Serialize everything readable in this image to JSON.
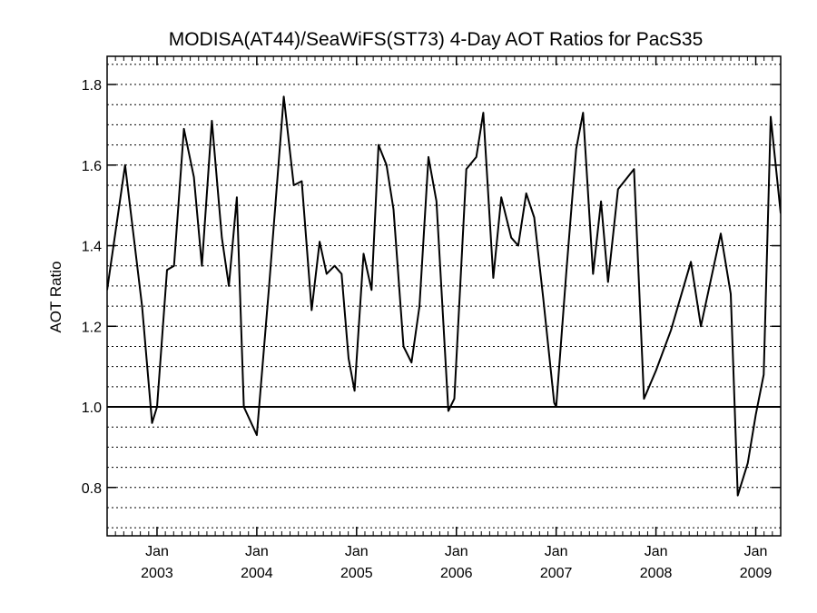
{
  "chart_data": {
    "type": "line",
    "title": "MODISA(AT44)/SeaWiFS(ST73) 4-Day AOT Ratios for PacS35",
    "xlabel": "",
    "ylabel": "AOT Ratio",
    "xlim": [
      2002.5,
      2009.25
    ],
    "ylim": [
      0.68,
      1.87
    ],
    "y_ticks": [
      "0.8",
      "1.0",
      "1.2",
      "1.4",
      "1.6",
      "1.8"
    ],
    "y_tick_values": [
      0.8,
      1.0,
      1.2,
      1.4,
      1.6,
      1.8
    ],
    "x_ticks": [
      {
        "month": "Jan",
        "year": "2003",
        "value": 2003
      },
      {
        "month": "Jan",
        "year": "2004",
        "value": 2004
      },
      {
        "month": "Jan",
        "year": "2005",
        "value": 2005
      },
      {
        "month": "Jan",
        "year": "2006",
        "value": 2006
      },
      {
        "month": "Jan",
        "year": "2007",
        "value": 2007
      },
      {
        "month": "Jan",
        "year": "2008",
        "value": 2008
      },
      {
        "month": "Jan",
        "year": "2009",
        "value": 2009
      }
    ],
    "reference_line": 1.0,
    "grid": "horizontal dotted at 0.05 intervals",
    "series": [
      {
        "x": [
          2002.5,
          2002.68,
          2002.85,
          2002.95,
          2003.0,
          2003.1,
          2003.17,
          2003.27,
          2003.37,
          2003.45,
          2003.55,
          2003.65,
          2003.72,
          2003.8,
          2003.87,
          2004.0,
          2004.12,
          2004.27,
          2004.37,
          2004.45,
          2004.55,
          2004.63,
          2004.7,
          2004.78,
          2004.85,
          2004.92,
          2004.98,
          2005.07,
          2005.15,
          2005.22,
          2005.3,
          2005.37,
          2005.47,
          2005.55,
          2005.63,
          2005.72,
          2005.8,
          2005.92,
          2005.98,
          2006.1,
          2006.2,
          2006.27,
          2006.37,
          2006.45,
          2006.55,
          2006.62,
          2006.7,
          2006.78,
          2006.87,
          2006.98,
          2007.0,
          2007.1,
          2007.2,
          2007.27,
          2007.37,
          2007.45,
          2007.52,
          2007.62,
          2007.78,
          2007.88,
          2008.0,
          2008.15,
          2008.35,
          2008.45,
          2008.65,
          2008.75,
          2008.82,
          2008.92,
          2009.0,
          2009.08,
          2009.15,
          2009.25
        ],
        "y": [
          1.29,
          1.6,
          1.25,
          0.96,
          1.0,
          1.34,
          1.35,
          1.69,
          1.57,
          1.35,
          1.71,
          1.42,
          1.3,
          1.52,
          1.0,
          0.93,
          1.29,
          1.77,
          1.55,
          1.56,
          1.24,
          1.41,
          1.33,
          1.35,
          1.33,
          1.12,
          1.04,
          1.38,
          1.29,
          1.65,
          1.6,
          1.49,
          1.15,
          1.11,
          1.25,
          1.62,
          1.51,
          0.99,
          1.02,
          1.59,
          1.62,
          1.73,
          1.32,
          1.52,
          1.42,
          1.4,
          1.53,
          1.47,
          1.27,
          1.01,
          1.0,
          1.33,
          1.64,
          1.73,
          1.33,
          1.51,
          1.31,
          1.54,
          1.59,
          1.02,
          1.09,
          1.19,
          1.36,
          1.2,
          1.43,
          1.28,
          0.78,
          0.86,
          0.98,
          1.08,
          1.72,
          1.48
        ]
      }
    ]
  }
}
